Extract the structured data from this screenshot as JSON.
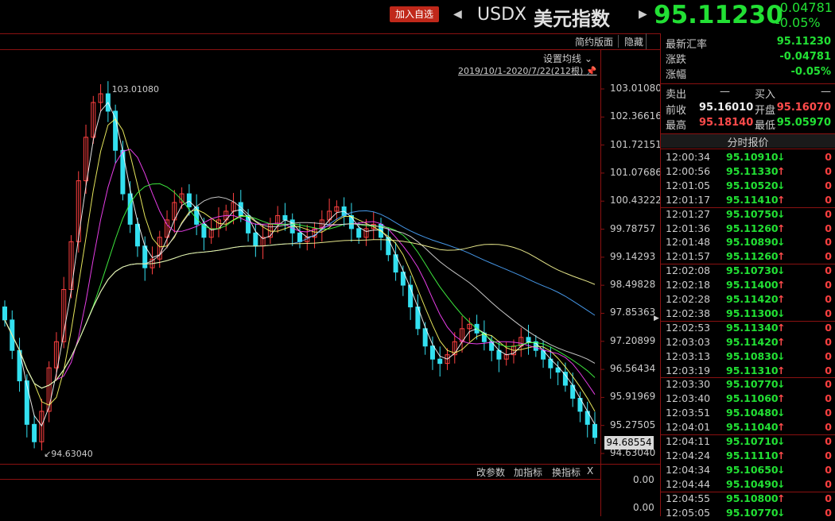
{
  "header": {
    "add_watch": "加入自选",
    "symbol": "USDX",
    "symbol_cn": "美元指数",
    "last_price": "95.11230",
    "change": "-0.04781",
    "change_pct": "-0.05%"
  },
  "chart_toolbar": {
    "contract": "简约版面",
    "hide": "隐藏",
    "settings": "设置均线",
    "range": "2019/10/1-2020/7/22(212根)"
  },
  "chart_data": {
    "type": "candlestick",
    "y_ticks": [
      "103.01080",
      "102.36616",
      "101.72151",
      "101.07686",
      "100.43222",
      "99.78757",
      "99.14293",
      "98.49828",
      "97.85363",
      "97.20899",
      "96.56434",
      "95.91969",
      "95.27505",
      "94.63040"
    ],
    "ylim": [
      94.6304,
      103.0108
    ],
    "high_label": "103.01080",
    "low_label": "94.63040",
    "last_value": "94.68554",
    "sub_y_label": "0.00",
    "ma_colors": [
      "#ffffff",
      "#ffff66",
      "#ff44ff",
      "#44ff44",
      "#dddddd",
      "#4da6ff",
      "#ffff99"
    ],
    "up_color": "#ff4040",
    "down_color": "#33e0f0",
    "closes": [
      97.7,
      97.0,
      96.3,
      95.3,
      94.9,
      95.6,
      96.6,
      97.2,
      98.4,
      99.5,
      100.9,
      101.9,
      102.7,
      102.9,
      102.5,
      101.6,
      100.6,
      99.9,
      99.4,
      98.9,
      99.1,
      99.6,
      100.0,
      100.4,
      100.6,
      100.3,
      99.9,
      99.6,
      99.8,
      100.0,
      100.2,
      100.4,
      100.1,
      99.7,
      99.4,
      99.6,
      99.9,
      100.1,
      100.0,
      99.7,
      99.5,
      99.6,
      99.8,
      100.0,
      100.2,
      100.3,
      100.1,
      99.8,
      99.6,
      99.8,
      99.9,
      99.6,
      99.2,
      98.8,
      98.5,
      98.0,
      97.5,
      97.1,
      96.8,
      96.7,
      96.9,
      97.2,
      97.5,
      97.6,
      97.4,
      97.2,
      97.0,
      96.8,
      96.9,
      97.1,
      97.3,
      97.2,
      97.0,
      96.8,
      96.6,
      96.5,
      96.2,
      95.9,
      95.6,
      95.3,
      95.0
    ]
  },
  "sub_panel": {
    "params": "改参数",
    "add_indicator": "加指标",
    "switch_indicator": "换指标",
    "close": "X",
    "zero_label_1": "0.00",
    "zero_label_2": "0.00"
  },
  "quote_panel": {
    "latest_label": "最新汇率",
    "latest": "95.11230",
    "change_label": "涨跌",
    "change": "-0.04781",
    "pct_label": "涨幅",
    "pct": "-0.05%",
    "ask_label": "卖出",
    "ask": "—",
    "bid_label": "买入",
    "bid": "—",
    "prev_label": "前收",
    "prev": "95.16010",
    "open_label": "开盘",
    "open": "95.16070",
    "high_label": "最高",
    "high": "95.18140",
    "low_label": "最低",
    "low": "95.05970",
    "ticks_title": "分时报价"
  },
  "ticks": [
    {
      "time": "12:00:34",
      "price": "95.10910",
      "dir": "down",
      "vol": "0"
    },
    {
      "time": "12:00:56",
      "price": "95.11330",
      "dir": "up",
      "vol": "0"
    },
    {
      "time": "12:01:05",
      "price": "95.10520",
      "dir": "down",
      "vol": "0"
    },
    {
      "time": "12:01:17",
      "price": "95.11410",
      "dir": "up",
      "vol": "0"
    },
    {
      "time": "12:01:27",
      "price": "95.10750",
      "dir": "down",
      "vol": "0"
    },
    {
      "time": "12:01:36",
      "price": "95.11260",
      "dir": "up",
      "vol": "0"
    },
    {
      "time": "12:01:48",
      "price": "95.10890",
      "dir": "down",
      "vol": "0"
    },
    {
      "time": "12:01:57",
      "price": "95.11260",
      "dir": "up",
      "vol": "0"
    },
    {
      "time": "12:02:08",
      "price": "95.10730",
      "dir": "down",
      "vol": "0"
    },
    {
      "time": "12:02:18",
      "price": "95.11400",
      "dir": "up",
      "vol": "0"
    },
    {
      "time": "12:02:28",
      "price": "95.11420",
      "dir": "up",
      "vol": "0"
    },
    {
      "time": "12:02:38",
      "price": "95.11300",
      "dir": "down",
      "vol": "0"
    },
    {
      "time": "12:02:53",
      "price": "95.11340",
      "dir": "up",
      "vol": "0"
    },
    {
      "time": "12:03:03",
      "price": "95.11420",
      "dir": "up",
      "vol": "0"
    },
    {
      "time": "12:03:13",
      "price": "95.10830",
      "dir": "down",
      "vol": "0"
    },
    {
      "time": "12:03:19",
      "price": "95.11310",
      "dir": "up",
      "vol": "0"
    },
    {
      "time": "12:03:30",
      "price": "95.10770",
      "dir": "down",
      "vol": "0"
    },
    {
      "time": "12:03:40",
      "price": "95.11060",
      "dir": "up",
      "vol": "0"
    },
    {
      "time": "12:03:51",
      "price": "95.10480",
      "dir": "down",
      "vol": "0"
    },
    {
      "time": "12:04:01",
      "price": "95.11040",
      "dir": "up",
      "vol": "0"
    },
    {
      "time": "12:04:11",
      "price": "95.10710",
      "dir": "down",
      "vol": "0"
    },
    {
      "time": "12:04:24",
      "price": "95.11110",
      "dir": "up",
      "vol": "0"
    },
    {
      "time": "12:04:34",
      "price": "95.10650",
      "dir": "down",
      "vol": "0"
    },
    {
      "time": "12:04:44",
      "price": "95.10490",
      "dir": "down",
      "vol": "0"
    },
    {
      "time": "12:04:55",
      "price": "95.10800",
      "dir": "up",
      "vol": "0"
    },
    {
      "time": "12:05:05",
      "price": "95.10770",
      "dir": "down",
      "vol": "0"
    }
  ]
}
